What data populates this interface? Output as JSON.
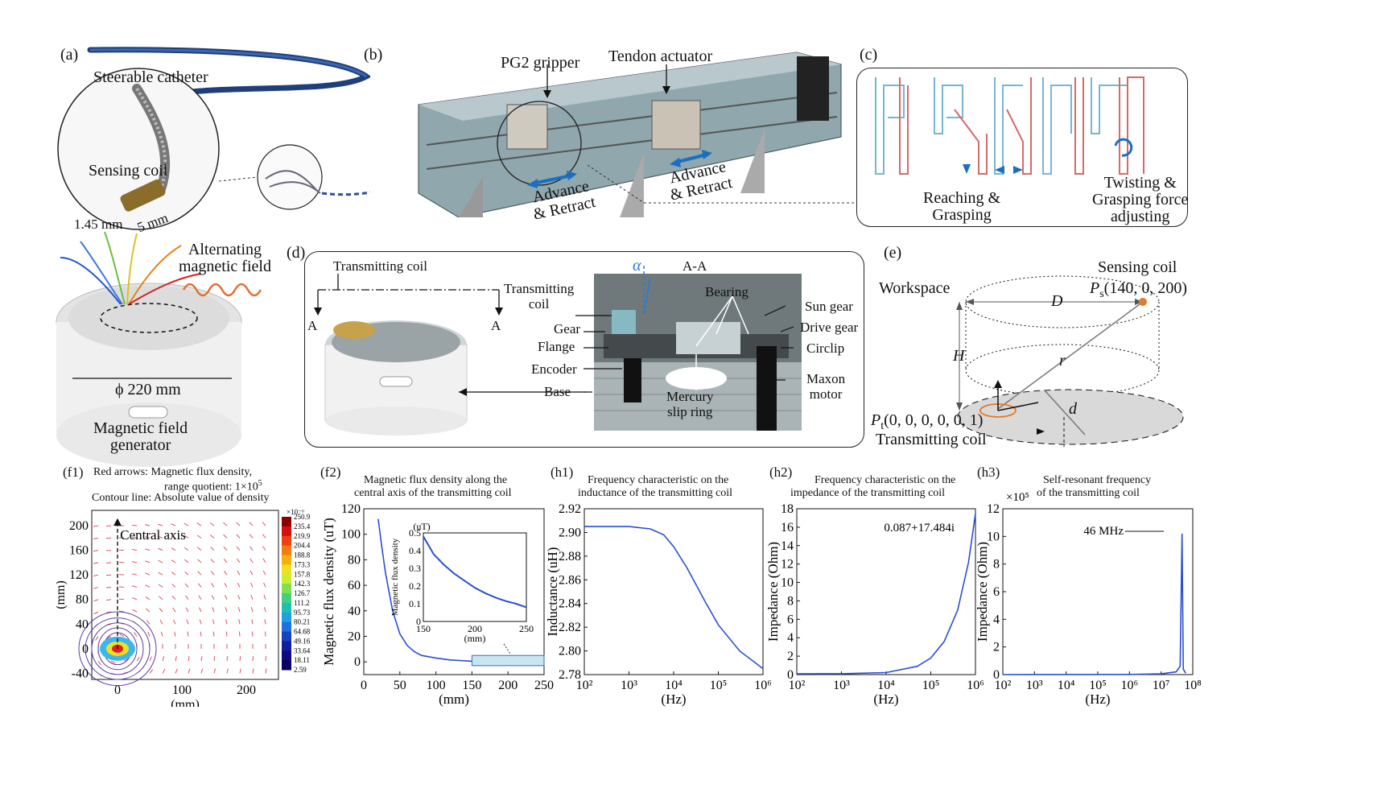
{
  "panels": {
    "a": {
      "tag": "(a)",
      "catheter": "Steerable catheter",
      "sensing_coil": "Sensing coil",
      "dim_dia": "1.45 mm",
      "dim_len": "5 mm",
      "field": "Alternating\nmagnetic field",
      "diameter": "ϕ 220 mm",
      "generator": "Magnetic field\ngenerator"
    },
    "b": {
      "tag": "(b)",
      "gripper": "PG2 gripper",
      "tendon": "Tendon actuator",
      "advance1": "Advance\n& Retract",
      "advance2": "Advance\n& Retract"
    },
    "c": {
      "tag": "(c)",
      "reach": "Reaching &\nGrasping",
      "twist": "Twisting &\nGrasping force\nadjusting"
    },
    "d": {
      "tag": "(d)",
      "tx_coil": "Transmitting coil",
      "sec_a1": "A",
      "sec_a2": "A",
      "section": "A-A",
      "alpha": "α",
      "base": "Base",
      "labels_left": [
        "Transmitting\ncoil",
        "Gear",
        "Flange",
        "Encoder"
      ],
      "bearing": "Bearing",
      "labels_right": [
        "Sun gear",
        "Drive gear",
        "Circlip",
        "Maxon\nmotor"
      ],
      "mercury": "Mercury\nslip ring"
    },
    "e": {
      "tag": "(e)",
      "workspace": "Workspace",
      "sensing_coil": "Sensing coil",
      "ps": "(140, 0, 200)",
      "ps_sym": "P",
      "ps_sub": "s",
      "D": "D",
      "H": "H",
      "r": "r",
      "d": "d",
      "pt": "(0, 0, 0, 0, 0, 1)",
      "pt_sym": "P",
      "pt_sub": "t",
      "tx": "Transmitting coil"
    }
  },
  "chart_data": [
    {
      "id": "f1",
      "type": "heatmap",
      "tag": "(f1)",
      "title_lines": [
        "Red arrows: Magnetic flux density,",
        "range quotient: 1×10",
        "Contour line: Absolute value of density"
      ],
      "title_exp": "5",
      "annotation": "Central axis",
      "xlabel": "(mm)",
      "ylabel": "(mm)",
      "xticks": [
        0,
        100,
        200
      ],
      "yticks": [
        200,
        160,
        120,
        80,
        40,
        0,
        -40
      ],
      "colorbar_exp": "×10⁻⁶",
      "colorbar": [
        250.9,
        235.4,
        219.9,
        204.4,
        188.8,
        173.3,
        157.8,
        142.3,
        126.7,
        111.2,
        95.73,
        80.21,
        64.68,
        49.16,
        33.64,
        18.11,
        2.59
      ]
    },
    {
      "id": "f2",
      "type": "line",
      "tag": "(f2)",
      "title_lines": [
        "Magnetic flux density along the",
        "central axis of the transmitting coil"
      ],
      "xlabel": "(mm)",
      "ylabel": "Magnetic flux density (uT)",
      "xlim": [
        0,
        250
      ],
      "ylim": [
        -10,
        120
      ],
      "xticks": [
        0,
        50,
        100,
        150,
        200,
        250
      ],
      "yticks": [
        0,
        20,
        40,
        60,
        80,
        100,
        120
      ],
      "x": [
        20,
        25,
        30,
        40,
        50,
        60,
        70,
        80,
        100,
        120,
        150,
        200,
        250
      ],
      "y": [
        112,
        90,
        70,
        40,
        22,
        13,
        8,
        5,
        3,
        1.5,
        0.5,
        0.18,
        0.08
      ],
      "inset": {
        "unit": "(uT)",
        "ylabel": "Magnetic flux density",
        "xlabel": "(mm)",
        "xlim": [
          150,
          250
        ],
        "ylim": [
          0,
          0.5
        ],
        "xticks": [
          150,
          200,
          250
        ],
        "yticks": [
          0,
          0.1,
          0.2,
          0.3,
          0.4,
          0.5
        ],
        "x": [
          150,
          160,
          170,
          180,
          190,
          200,
          210,
          220,
          230,
          240,
          250
        ],
        "y": [
          0.48,
          0.38,
          0.32,
          0.27,
          0.23,
          0.19,
          0.16,
          0.135,
          0.115,
          0.1,
          0.08
        ]
      }
    },
    {
      "id": "h1",
      "type": "line",
      "tag": "(h1)",
      "title_lines": [
        "Frequency characteristic on the",
        "inductance of the transmitting coil"
      ],
      "xlabel": "(Hz)",
      "ylabel": "Inductance (uH)",
      "xscale": "log",
      "xlim": [
        100,
        1000000
      ],
      "ylim": [
        2.78,
        2.92
      ],
      "xticks": [
        "10²",
        "10³",
        "10⁴",
        "10⁵",
        "10⁶"
      ],
      "yticks": [
        2.78,
        2.8,
        2.82,
        2.84,
        2.86,
        2.88,
        2.9,
        2.92
      ],
      "x": [
        100,
        1000,
        3000,
        6000,
        10000,
        20000,
        50000,
        100000,
        300000,
        1000000
      ],
      "y": [
        2.905,
        2.905,
        2.903,
        2.898,
        2.888,
        2.87,
        2.842,
        2.822,
        2.8,
        2.785
      ]
    },
    {
      "id": "h2",
      "type": "line",
      "tag": "(h2)",
      "title_lines": [
        "Frequency characteristic on the",
        "impedance of the transmitting coil"
      ],
      "xlabel": "(Hz)",
      "ylabel": "Impedance (Ohm)",
      "xscale": "log",
      "xlim": [
        100,
        1000000
      ],
      "ylim": [
        0,
        18
      ],
      "xticks": [
        "10²",
        "10³",
        "10⁴",
        "10⁵",
        "10⁶"
      ],
      "yticks": [
        0,
        2,
        4,
        6,
        8,
        10,
        12,
        14,
        16,
        18
      ],
      "annotation": "0.087+17.484i",
      "x": [
        100,
        1000,
        10000,
        50000,
        100000,
        200000,
        400000,
        700000,
        1000000
      ],
      "y": [
        0.09,
        0.1,
        0.22,
        0.9,
        1.8,
        3.6,
        7.0,
        12.2,
        17.48
      ]
    },
    {
      "id": "h3",
      "type": "line",
      "tag": "(h3)",
      "title_lines": [
        "Self-resonant frequency",
        "of the transmitting coil"
      ],
      "xlabel": "(Hz)",
      "ylabel": "Impedance (Ohm)",
      "y_exp": "×10⁵",
      "xscale": "log",
      "xlim": [
        100,
        100000000
      ],
      "ylim": [
        0,
        12
      ],
      "xticks": [
        "10²",
        "10³",
        "10⁴",
        "10⁵",
        "10⁶",
        "10⁷",
        "10⁸"
      ],
      "yticks": [
        0,
        2,
        4,
        6,
        8,
        10,
        12
      ],
      "annotation": "46 MHz",
      "x": [
        100,
        1000000,
        10000000,
        30000000,
        40000000,
        46000000,
        50000000,
        60000000
      ],
      "y": [
        0,
        0.01,
        0.05,
        0.2,
        0.6,
        10.2,
        0.4,
        0.1
      ]
    }
  ]
}
